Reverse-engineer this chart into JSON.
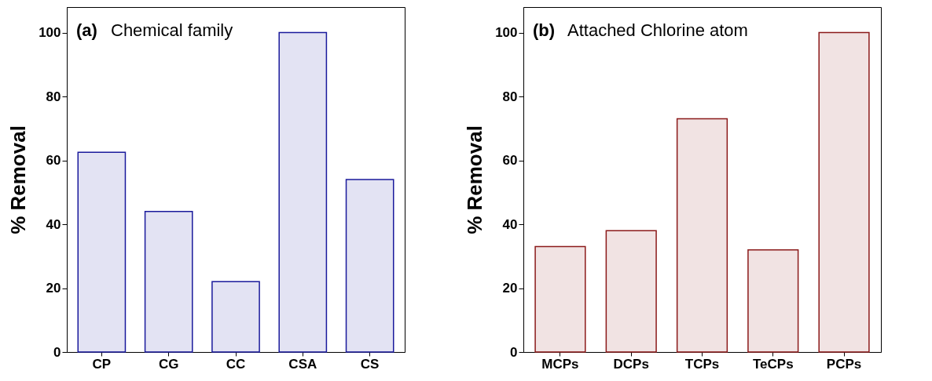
{
  "chart_data": [
    {
      "type": "bar",
      "ylabel": "% Removal",
      "annotations": [
        "(a) Chemical family"
      ],
      "categories": [
        "CP",
        "CG",
        "CC",
        "CSA",
        "CS"
      ],
      "values": [
        62.5,
        44,
        22,
        100,
        54
      ],
      "color": "#1a1a9c",
      "ylim": [
        0,
        108
      ],
      "yticks": [
        0,
        20,
        40,
        60,
        80,
        100
      ],
      "grid": false
    },
    {
      "type": "bar",
      "ylabel": "% Removal",
      "annotations": [
        "(b) Attached Chlorine atom"
      ],
      "categories": [
        "MCPs",
        "DCPs",
        "TCPs",
        "TeCPs",
        "PCPs"
      ],
      "values": [
        33,
        38,
        73,
        32,
        100
      ],
      "color": "#8b1a1a",
      "ylim": [
        0,
        108
      ],
      "yticks": [
        0,
        20,
        40,
        60,
        80,
        100
      ],
      "grid": false
    }
  ]
}
